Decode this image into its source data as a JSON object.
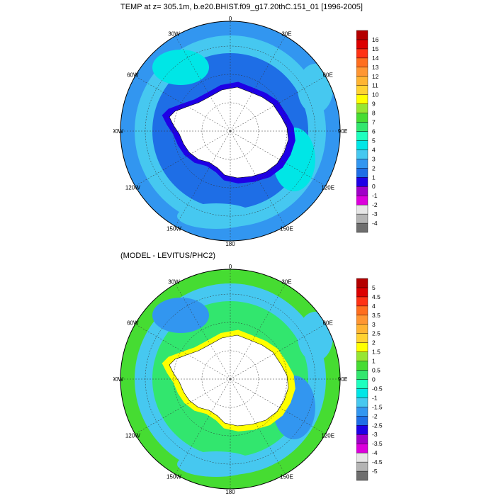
{
  "panels": [
    {
      "title": "TEMP at z= 305.1m, b.e20.BHIST.f09_g17.20thC.151_01 [1996-2005]",
      "levels": [
        "-4",
        "-3",
        "-2",
        "-1",
        "0",
        "1",
        "2",
        "3",
        "4",
        "5",
        "6",
        "7",
        "8",
        "9",
        "10",
        "11",
        "12",
        "13",
        "14",
        "15",
        "16"
      ],
      "colors": [
        "#6e6e6e",
        "#b4b4b4",
        "#e6e6e6",
        "#dc00dc",
        "#a000c8",
        "#1e00e6",
        "#1e6ee6",
        "#3296f0",
        "#46c8f0",
        "#00e6e6",
        "#1effbe",
        "#32e66e",
        "#46dc32",
        "#96e632",
        "#ffff00",
        "#ffd232",
        "#ffb432",
        "#ff9632",
        "#ff6e1e",
        "#ff3214",
        "#dc0000",
        "#b40000"
      ],
      "field_color": "#1e6ee6",
      "ring_colors": [
        "#3296f0",
        "#46c8f0",
        "#00e6e6"
      ],
      "coast_color": "#1e00e6"
    },
    {
      "title": "(MODEL - LEVITUS/PHC2)",
      "levels": [
        "-5",
        "-4.5",
        "-4",
        "-3.5",
        "-3",
        "-2.5",
        "-2",
        "-1.5",
        "-1",
        "-0.5",
        "0",
        "0.5",
        "1",
        "1.5",
        "2",
        "2.5",
        "3",
        "3.5",
        "4",
        "4.5",
        "5"
      ],
      "colors": [
        "#6e6e6e",
        "#b4b4b4",
        "#e6e6e6",
        "#dc00dc",
        "#a000c8",
        "#1e00e6",
        "#1e6ee6",
        "#3296f0",
        "#46c8f0",
        "#00e6e6",
        "#1effbe",
        "#32e66e",
        "#46dc32",
        "#96e632",
        "#ffff00",
        "#ffd232",
        "#ffb432",
        "#ff9632",
        "#ff6e1e",
        "#ff3214",
        "#dc0000",
        "#b40000"
      ],
      "field_color": "#32e66e",
      "ring_colors": [
        "#46dc32",
        "#46c8f0",
        "#3296f0"
      ],
      "coast_color": "#ffff00"
    }
  ],
  "map_labels": {
    "lon_0": "0",
    "lon_30e": "30E",
    "lon_60e": "60E",
    "lon_90e": "90E",
    "lon_120e": "120E",
    "lon_150e": "150E",
    "lon_180": "180",
    "lon_150w": "150W",
    "lon_120w": "120W",
    "lon_90w": "90W",
    "lon_60w": "60W",
    "lon_30w": "30W"
  }
}
